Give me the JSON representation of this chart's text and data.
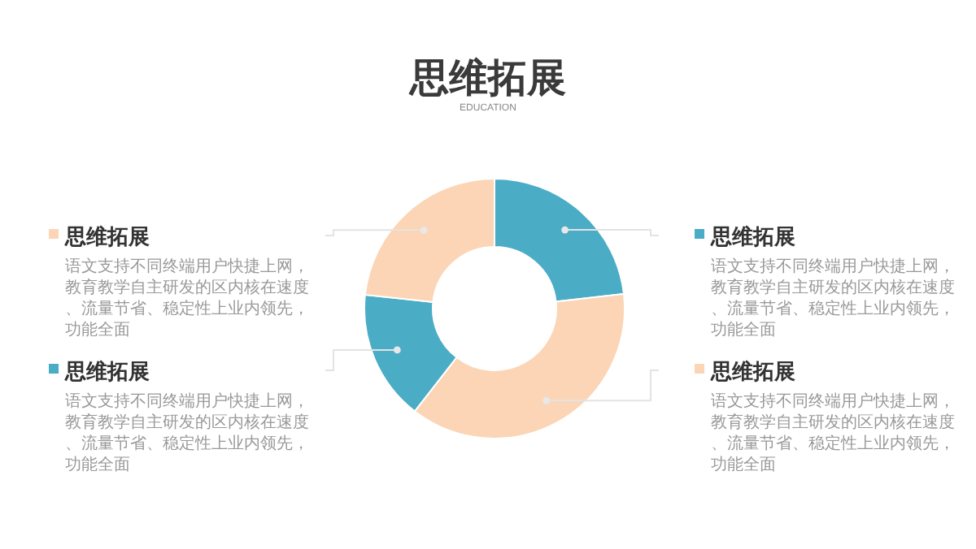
{
  "chart_data": {
    "type": "donut",
    "title": "思维拓展",
    "subtitle": "EDUCATION",
    "categories": [
      "思维拓展",
      "思维拓展",
      "思维拓展",
      "思维拓展"
    ],
    "values": [
      23.2,
      37.3,
      16.2,
      23.3
    ],
    "colors": [
      "#4bacc6",
      "#fbd5b5",
      "#4bacc6",
      "#fbd5b5"
    ],
    "annotations": [
      "语文支持不同终端用户快捷上网，教育教学自主研发的区内核在速度、流量节省、稳定性上业内领先，功能全面",
      "语文支持不同终端用户快捷上网，教育教学自主研发的区内核在速度、流量节省、稳定性上业内领先，功能全面",
      "语文支持不同终端用户快捷上网，教育教学自主研发的区内核在速度、流量节省、稳定性上业内领先，功能全面",
      "语文支持不同终端用户快捷上网，教育教学自主研发的区内核在速度、流量节省、稳定性上业内领先，功能全面"
    ]
  }
}
